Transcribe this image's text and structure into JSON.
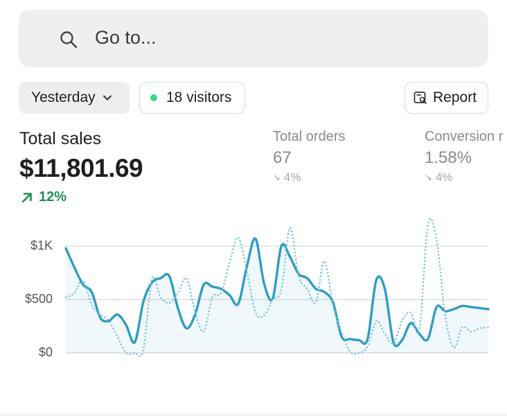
{
  "search": {
    "placeholder": "Go to..."
  },
  "filters": {
    "period_label": "Yesterday",
    "visitors_label": "18 visitors",
    "report_label": "Report"
  },
  "metrics": {
    "total_sales": {
      "label": "Total sales",
      "value": "$11,801.69",
      "change": "12%"
    },
    "total_orders": {
      "label": "Total orders",
      "value": "67",
      "change": "4%"
    },
    "conversion": {
      "label": "Conversion r",
      "value": "1.58%",
      "change": "4%"
    }
  },
  "colors": {
    "accent": "#2f9cc4",
    "positive": "#1f8f55",
    "visitor_dot": "#3dd67c"
  },
  "chart_data": {
    "type": "line",
    "ylim": [
      0,
      1000
    ],
    "ytick_labels": [
      "$1K",
      "$500",
      "$0"
    ],
    "yticks": [
      1000,
      500,
      0
    ],
    "series": [
      {
        "style": "solid",
        "x": [
          0,
          1,
          2,
          3,
          4,
          5,
          6,
          7,
          8,
          9,
          10,
          11,
          12,
          13,
          14,
          15,
          16,
          17,
          18,
          19,
          20,
          21,
          22,
          23,
          24,
          25,
          26,
          27,
          28,
          29,
          30,
          31,
          32,
          33,
          34,
          35,
          36,
          37,
          38,
          39,
          40,
          41,
          42,
          43,
          44,
          45,
          46,
          47,
          48,
          49
        ],
        "values": [
          980,
          800,
          640,
          570,
          330,
          300,
          360,
          260,
          100,
          480,
          660,
          700,
          720,
          420,
          230,
          360,
          640,
          620,
          600,
          540,
          460,
          810,
          1070,
          650,
          510,
          1000,
          900,
          740,
          700,
          600,
          570,
          470,
          150,
          130,
          120,
          130,
          680,
          600,
          100,
          120,
          280,
          180,
          130,
          430,
          390,
          410,
          440,
          430,
          420,
          410
        ]
      },
      {
        "style": "dotted",
        "x": [
          0,
          1,
          2,
          3,
          4,
          5,
          6,
          7,
          8,
          9,
          10,
          11,
          12,
          13,
          14,
          15,
          16,
          17,
          18,
          19,
          20,
          21,
          22,
          23,
          24,
          25,
          26,
          27,
          28,
          29,
          30,
          31,
          32,
          33,
          34,
          35,
          36,
          37,
          38,
          39,
          40,
          41,
          42,
          43,
          44,
          45,
          46,
          47,
          48,
          49
        ],
        "values": [
          520,
          560,
          680,
          450,
          360,
          300,
          150,
          0,
          0,
          30,
          700,
          520,
          470,
          560,
          700,
          380,
          200,
          520,
          560,
          850,
          1080,
          760,
          380,
          350,
          500,
          590,
          1170,
          720,
          600,
          470,
          860,
          440,
          190,
          10,
          0,
          60,
          300,
          180,
          90,
          300,
          380,
          220,
          1200,
          1060,
          350,
          50,
          240,
          200,
          230,
          240
        ]
      }
    ],
    "grid": true
  }
}
